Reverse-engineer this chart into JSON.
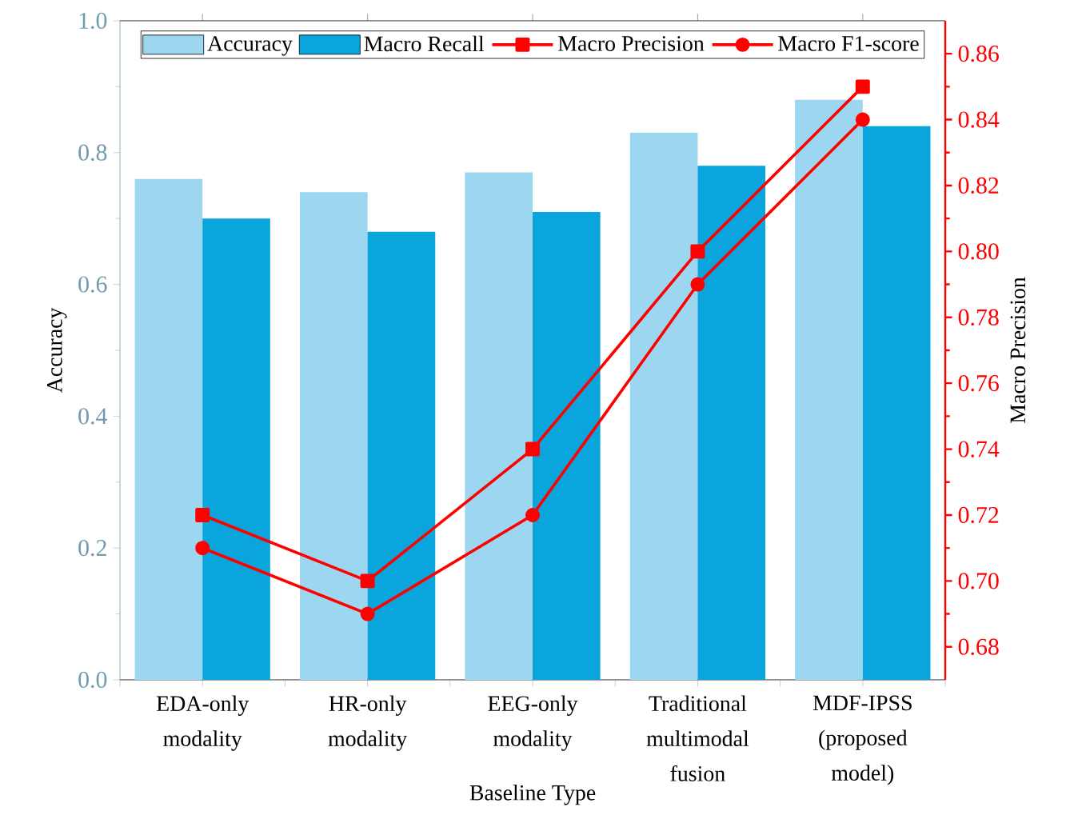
{
  "chart_data": {
    "type": "bar",
    "xlabel": "Baseline Type",
    "ylabel": "Accuracy",
    "y2label": "Macro Precision",
    "categories": [
      "EDA-only modality",
      "HR-only modality",
      "EEG-only modality",
      "Traditional multimodal fusion",
      "MDF-IPSS (proposed model)"
    ],
    "series": [
      {
        "name": "Accuracy",
        "color": "#9dd6f0",
        "values": [
          0.76,
          0.74,
          0.77,
          0.83,
          0.88
        ]
      },
      {
        "name": "Macro Recall",
        "color": "#0aa5dc",
        "values": [
          0.7,
          0.68,
          0.71,
          0.78,
          0.84
        ]
      },
      {
        "name": "Macro Precision",
        "type": "line",
        "axis": "y2",
        "color": "#ff0000",
        "marker": "square",
        "values": [
          0.72,
          0.7,
          0.74,
          0.8,
          0.85
        ]
      },
      {
        "name": "Macro F1-score",
        "type": "line",
        "axis": "y2",
        "color": "#ff0000",
        "marker": "circle",
        "values": [
          0.71,
          0.69,
          0.72,
          0.79,
          0.84
        ]
      }
    ],
    "ylim": [
      0,
      1
    ],
    "yticks": [
      {
        "value": 0,
        "label": "0.0"
      },
      0.2,
      0.4,
      0.6,
      0.8,
      {
        "value": 1,
        "label": "1.0"
      }
    ],
    "y2lim": [
      0.67,
      0.87
    ],
    "y2ticks": [
      0.68,
      {
        "value": 0.7,
        "label": "0.70"
      },
      0.72,
      0.74,
      0.76,
      0.78,
      {
        "value": 0.8,
        "label": "0.80"
      },
      0.82,
      0.84,
      0.86
    ],
    "legend": "top"
  }
}
